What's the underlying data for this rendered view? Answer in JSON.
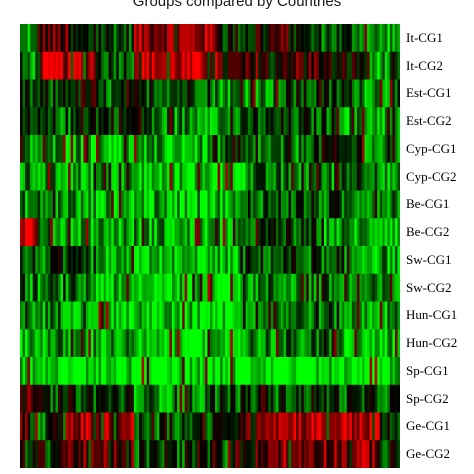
{
  "chart_data": {
    "type": "heatmap",
    "title": "Groups compared by Countries",
    "rows": [
      "It-CG1",
      "It-CG2",
      "Est-CG1",
      "Est-CG2",
      "Cyp-CG1",
      "Cyp-CG2",
      "Be-CG1",
      "Be-CG2",
      "Sw-CG1",
      "Sw-CG2",
      "Hun-CG1",
      "Hun-CG2",
      "Sp-CG1",
      "Sp-CG2",
      "Ge-CG1",
      "Ge-CG2"
    ],
    "n_columns": 150,
    "value_range": [
      -1,
      1
    ],
    "colors": {
      "low": "#00ff00",
      "mid": "#000000",
      "high": "#ff0000"
    },
    "row_profiles": [
      {
        "segments": [
          [
            0,
            0.05,
            -0.6
          ],
          [
            0.05,
            0.13,
            0.3
          ],
          [
            0.13,
            0.3,
            -0.2
          ],
          [
            0.3,
            0.52,
            0.6
          ],
          [
            0.52,
            0.62,
            -0.1
          ],
          [
            0.62,
            0.75,
            0.2
          ],
          [
            0.75,
            0.9,
            -0.3
          ],
          [
            0.9,
            1.0,
            -0.6
          ]
        ]
      },
      {
        "segments": [
          [
            0,
            0.05,
            -0.5
          ],
          [
            0.05,
            0.2,
            0.7
          ],
          [
            0.2,
            0.3,
            -0.2
          ],
          [
            0.3,
            0.52,
            0.7
          ],
          [
            0.52,
            0.62,
            0.1
          ],
          [
            0.62,
            0.8,
            0.3
          ],
          [
            0.8,
            0.92,
            0.0
          ],
          [
            0.92,
            1.0,
            -0.6
          ]
        ]
      },
      {
        "segments": [
          [
            0,
            0.1,
            -0.3
          ],
          [
            0.1,
            0.2,
            0.0
          ],
          [
            0.2,
            0.3,
            -0.4
          ],
          [
            0.3,
            0.5,
            -0.2
          ],
          [
            0.5,
            0.7,
            -0.5
          ],
          [
            0.7,
            0.9,
            -0.3
          ],
          [
            0.9,
            1.0,
            -0.5
          ]
        ]
      },
      {
        "segments": [
          [
            0,
            0.15,
            -0.4
          ],
          [
            0.15,
            0.35,
            -0.1
          ],
          [
            0.35,
            0.6,
            -0.5
          ],
          [
            0.6,
            0.85,
            -0.3
          ],
          [
            0.85,
            1.0,
            -0.6
          ]
        ]
      },
      {
        "segments": [
          [
            0,
            0.2,
            -0.6
          ],
          [
            0.2,
            0.5,
            -0.7
          ],
          [
            0.5,
            0.75,
            -0.5
          ],
          [
            0.75,
            0.9,
            -0.2
          ],
          [
            0.9,
            1.0,
            -0.6
          ]
        ]
      },
      {
        "segments": [
          [
            0,
            0.3,
            -0.6
          ],
          [
            0.3,
            0.6,
            -0.8
          ],
          [
            0.6,
            0.85,
            -0.5
          ],
          [
            0.85,
            0.95,
            -0.2
          ],
          [
            0.95,
            1.0,
            -0.7
          ]
        ]
      },
      {
        "segments": [
          [
            0,
            0.15,
            -0.5
          ],
          [
            0.15,
            0.6,
            -0.7
          ],
          [
            0.6,
            0.78,
            -0.3
          ],
          [
            0.78,
            1.0,
            -0.4
          ]
        ]
      },
      {
        "segments": [
          [
            0,
            0.05,
            0.8
          ],
          [
            0.05,
            0.4,
            -0.6
          ],
          [
            0.4,
            0.6,
            -0.7
          ],
          [
            0.6,
            0.8,
            -0.3
          ],
          [
            0.8,
            1.0,
            -0.6
          ]
        ]
      },
      {
        "segments": [
          [
            0,
            0.2,
            -0.4
          ],
          [
            0.2,
            0.58,
            -0.8
          ],
          [
            0.58,
            0.8,
            -0.3
          ],
          [
            0.8,
            1.0,
            -0.6
          ]
        ]
      },
      {
        "segments": [
          [
            0,
            0.2,
            -0.5
          ],
          [
            0.2,
            0.58,
            -0.8
          ],
          [
            0.58,
            0.85,
            -0.5
          ],
          [
            0.85,
            1.0,
            -0.6
          ]
        ]
      },
      {
        "segments": [
          [
            0,
            0.2,
            -0.5
          ],
          [
            0.2,
            0.58,
            -0.8
          ],
          [
            0.58,
            0.85,
            -0.4
          ],
          [
            0.85,
            1.0,
            -0.6
          ]
        ]
      },
      {
        "segments": [
          [
            0,
            0.3,
            -0.6
          ],
          [
            0.3,
            0.58,
            -0.9
          ],
          [
            0.58,
            0.85,
            -0.5
          ],
          [
            0.85,
            1.0,
            -0.8
          ]
        ]
      },
      {
        "segments": [
          [
            0,
            1.0,
            -0.9
          ]
        ]
      },
      {
        "segments": [
          [
            0,
            0.05,
            0.2
          ],
          [
            0.05,
            0.3,
            -0.2
          ],
          [
            0.3,
            0.5,
            -0.5
          ],
          [
            0.5,
            0.7,
            -0.3
          ],
          [
            0.7,
            0.85,
            -0.2
          ],
          [
            0.85,
            1.0,
            -0.3
          ]
        ]
      },
      {
        "segments": [
          [
            0,
            0.05,
            0.3
          ],
          [
            0.05,
            0.12,
            -0.3
          ],
          [
            0.12,
            0.3,
            0.6
          ],
          [
            0.3,
            0.55,
            -0.3
          ],
          [
            0.55,
            0.62,
            0.2
          ],
          [
            0.62,
            0.95,
            0.7
          ],
          [
            0.95,
            1.0,
            -0.2
          ]
        ]
      },
      {
        "segments": [
          [
            0,
            0.1,
            -0.1
          ],
          [
            0.1,
            0.3,
            0.3
          ],
          [
            0.3,
            0.55,
            -0.3
          ],
          [
            0.55,
            0.65,
            0.2
          ],
          [
            0.65,
            0.95,
            0.5
          ],
          [
            0.95,
            1.0,
            -0.3
          ]
        ]
      }
    ]
  }
}
